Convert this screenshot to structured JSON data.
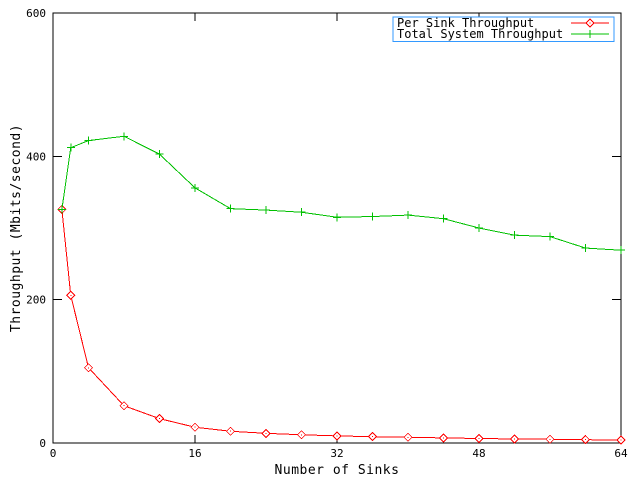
{
  "window": {
    "background": "#ffffff",
    "axis_color": "#000000"
  },
  "chart_data": {
    "type": "line",
    "title": "",
    "xlabel": "Number of Sinks",
    "ylabel": "Throughput (Mbits/second)",
    "xlim": [
      0,
      64
    ],
    "ylim": [
      0,
      600
    ],
    "x_ticks": [
      0,
      16,
      32,
      48,
      64
    ],
    "y_ticks": [
      0,
      200,
      400,
      600
    ],
    "grid": false,
    "legend_position": "top-right",
    "legend_border_color": "#3399ff",
    "x": [
      1,
      2,
      4,
      8,
      12,
      16,
      20,
      24,
      28,
      32,
      36,
      40,
      44,
      48,
      52,
      56,
      60,
      64
    ],
    "series": [
      {
        "name": "Per Sink Throughput",
        "color": "#ff0000",
        "marker": "diamond",
        "values": [
          326,
          206,
          105,
          52,
          34,
          22,
          16.4,
          13.5,
          11.5,
          9.9,
          8.8,
          8.0,
          7.1,
          6.3,
          5.6,
          5.2,
          4.6,
          4.2
        ]
      },
      {
        "name": "Total System Throughput",
        "color": "#00c000",
        "marker": "plus",
        "values": [
          326,
          412,
          422,
          428,
          403,
          356,
          327,
          325,
          322,
          315,
          316,
          318,
          313,
          300,
          290,
          288,
          272,
          269
        ]
      }
    ]
  }
}
